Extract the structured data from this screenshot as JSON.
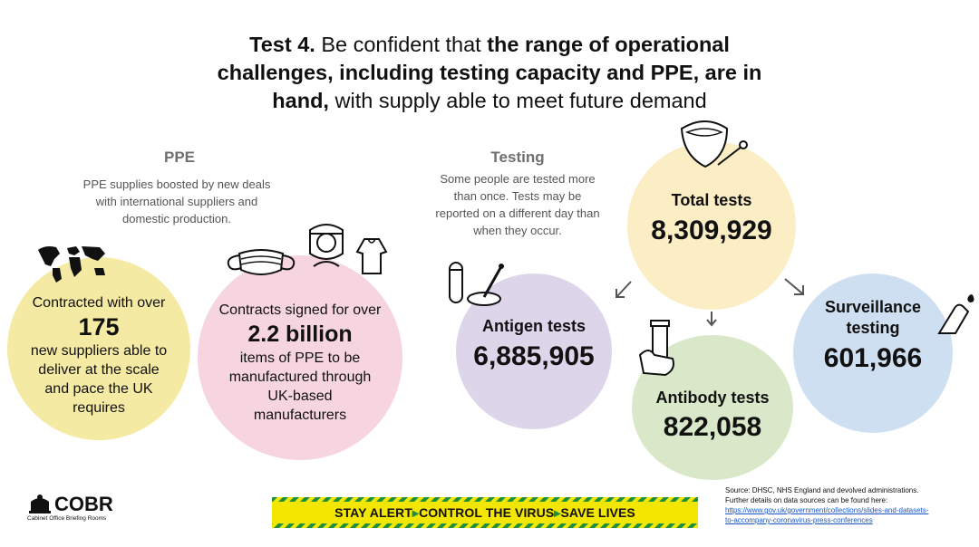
{
  "title": {
    "line1_lead": "Test 4.",
    "line1_plain": " Be confident that ",
    "line1_bold": "the range of operational",
    "line2_bold": "challenges, including testing capacity and PPE, are in",
    "line3_bold": "hand,",
    "line3_plain": " with supply able to meet future demand"
  },
  "ppe": {
    "heading": "PPE",
    "note": [
      "PPE supplies boosted by new deals",
      "with international suppliers and",
      "domestic production."
    ],
    "suppliers": {
      "lead": "Contracted with over",
      "value": "175",
      "text": [
        "new suppliers able to",
        "deliver at the scale",
        "and pace the UK",
        "requires"
      ],
      "color": "#f5eaa3"
    },
    "contracts": {
      "lead": "Contracts signed for over",
      "value": "2.2 billion",
      "text": [
        "items of PPE to be",
        "manufactured through",
        "UK-based",
        "manufacturers"
      ],
      "color": "#f6d5e0"
    }
  },
  "testing": {
    "heading": "Testing",
    "note": [
      "Some people are tested more",
      "than once. Tests may be",
      "reported on a different day than",
      "when they occur."
    ],
    "total": {
      "label": "Total tests",
      "value": "8,309,929",
      "color": "#fbedc4"
    },
    "antigen": {
      "label": "Antigen tests",
      "value": "6,885,905",
      "color": "#ddd5ea"
    },
    "antibody": {
      "label": "Antibody tests",
      "value": "822,058",
      "color": "#d9e8c8"
    },
    "surveillance": {
      "label_line1": "Surveillance",
      "label_line2": "testing",
      "value": "601,966",
      "color": "#cfdff2"
    }
  },
  "footer": {
    "logo_text": "COBR",
    "logo_sub": "Cabinet Office Briefing Rooms",
    "banner": {
      "part1": "STAY ALERT",
      "part2": "CONTROL THE VIRUS",
      "part3": "SAVE LIVES",
      "bg": "#f3e600",
      "stripe": "#1e8f3e"
    },
    "source": {
      "line1": "Source: DHSC, NHS England and devolved administrations.",
      "line2": "Further details on data sources can be found here:",
      "link1": "https://www.gov.uk/government/collections/slides-and-datasets-",
      "link2": "to-accompany-coronavirus-press-conferences"
    }
  },
  "icons": [
    "world-map-icon",
    "face-mask-icon",
    "face-shield-icon",
    "gown-icon",
    "test-tube-icon",
    "petri-dish-icon",
    "mouth-swab-icon",
    "antibody-vial-icon",
    "finger-prick-icon",
    "arrow-down-left-icon",
    "arrow-down-icon",
    "arrow-down-right-icon"
  ]
}
